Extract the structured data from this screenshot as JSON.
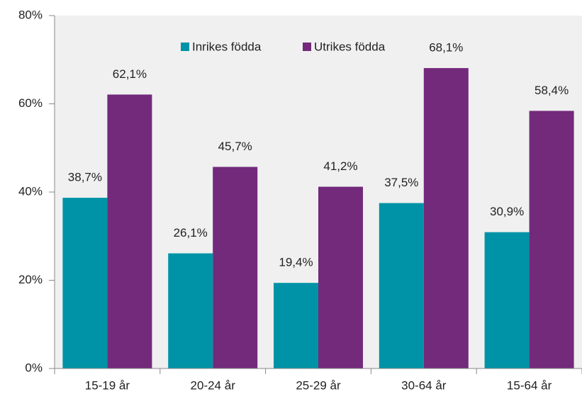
{
  "chart_data": {
    "type": "bar",
    "categories": [
      "15-19 år",
      "20-24 år",
      "25-29 år",
      "30-64 år",
      "15-64 år"
    ],
    "series": [
      {
        "name": "Inrikes födda",
        "color": "#0093a7",
        "values": [
          38.7,
          26.1,
          19.4,
          37.5,
          30.9
        ],
        "value_labels": [
          "38,7%",
          "26,1%",
          "19,4%",
          "37,5%",
          "30,9%"
        ]
      },
      {
        "name": "Utrikes födda",
        "color": "#732a7b",
        "values": [
          62.1,
          45.7,
          41.2,
          68.1,
          58.4
        ],
        "value_labels": [
          "62,1%",
          "45,7%",
          "41,2%",
          "68,1%",
          "58,4%"
        ]
      }
    ],
    "ylim": [
      0,
      80
    ],
    "yticks": [
      {
        "value": 0,
        "label": "0%"
      },
      {
        "value": 20,
        "label": "20%"
      },
      {
        "value": 40,
        "label": "40%"
      },
      {
        "value": 60,
        "label": "60%"
      },
      {
        "value": 80,
        "label": "80%"
      }
    ],
    "legend": "top"
  }
}
